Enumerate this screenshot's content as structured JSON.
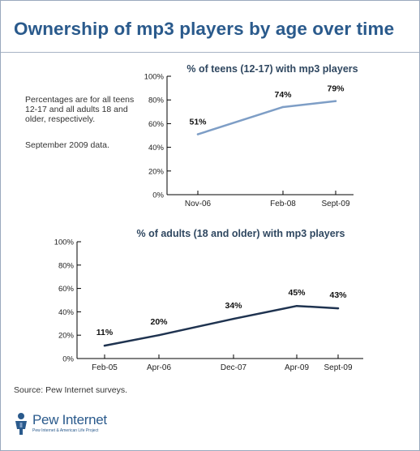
{
  "header": {
    "title": "Ownership of mp3 players by age over time"
  },
  "notes": {
    "line1": "Percentages are for all teens 12-17 and all adults 18 and older, respectively.",
    "line2": "September 2009 data."
  },
  "source": "Source: Pew Internet surveys.",
  "logo": {
    "name": "Pew Internet",
    "subtitle": "Pew Internet & American Life Project"
  },
  "colors": {
    "teens_line": "#7e9ec6",
    "adults_line": "#1f3350",
    "title": "#2a5a8c"
  },
  "chart_data": [
    {
      "type": "line",
      "title": "% of teens (12-17) with mp3 players",
      "x": [
        "Nov-06",
        "Feb-08",
        "Sept-09"
      ],
      "series": [
        {
          "values": [
            51,
            74,
            79
          ]
        }
      ],
      "data_labels": [
        "51%",
        "74%",
        "79%"
      ],
      "yticks": [
        "0%",
        "20%",
        "40%",
        "60%",
        "80%",
        "100%"
      ],
      "ylim": [
        0,
        100
      ],
      "xlabel": "",
      "ylabel": "",
      "grid": false,
      "legend": "none"
    },
    {
      "type": "line",
      "title": "% of adults (18 and older) with mp3 players",
      "x": [
        "Feb-05",
        "Apr-06",
        "Dec-07",
        "Apr-09",
        "Sept-09"
      ],
      "series": [
        {
          "values": [
            11,
            20,
            34,
            45,
            43
          ]
        }
      ],
      "data_labels": [
        "11%",
        "20%",
        "34%",
        "45%",
        "43%"
      ],
      "yticks": [
        "0%",
        "20%",
        "40%",
        "60%",
        "80%",
        "100%"
      ],
      "ylim": [
        0,
        100
      ],
      "xlabel": "",
      "ylabel": "",
      "grid": false,
      "legend": "none"
    }
  ]
}
